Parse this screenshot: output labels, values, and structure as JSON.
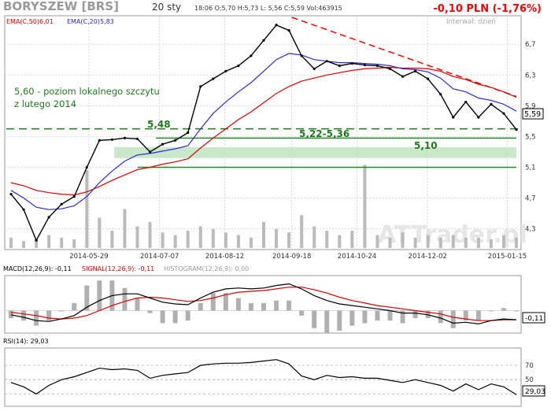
{
  "header": {
    "ticker": "BORYSZEW [BRS]",
    "date": "20 sty",
    "ohlc": "18:06  O:5,70  H:5,73  L: 5,56  C:5,59   Vol:463915",
    "change": "-0,10 PLN (-1,76%)",
    "interval": "Interwał: dzień",
    "ema50_label": "EMA(C,50)6,01",
    "ema20_label": "EMA(C,20)5,83",
    "watermark": "ATTrader.pl"
  },
  "colors": {
    "price": "#000000",
    "ema50": "#e00000",
    "ema20": "#2b2bd6",
    "volume": "#bbbbbb",
    "support": "#1e8c1e",
    "zone": "#bfe3bf",
    "resistance": "#ff0000",
    "dashed": "#1e7a1e",
    "title": "#ff0000",
    "axis": "#333333",
    "grid": "#d8d8d8"
  },
  "annotations": {
    "local_high_text_1": "5,60 - poziom lokalnego szczytu",
    "local_high_text_2": "z lutego 2014",
    "level_548": "5,48",
    "zone_label": "5,22-5,36",
    "level_510": "5,10"
  },
  "macd": {
    "label": "MACD(12,26,9): -0,11",
    "signal_label": "SIGNAL(12,26,9): -0,11",
    "histogram_label": "HISTOGRAM(12,26,9): 0,00",
    "value_box": "-0,11"
  },
  "rsi": {
    "label": "RSI(14): 29,03",
    "value_box": "29,03"
  },
  "chart_data": [
    {
      "type": "line",
      "name": "price",
      "dates": [
        "2014-04-16",
        "2014-04-23",
        "2014-04-30",
        "2014-05-07",
        "2014-05-14",
        "2014-05-21",
        "2014-05-28",
        "2014-06-04",
        "2014-06-11",
        "2014-06-18",
        "2014-06-25",
        "2014-07-02",
        "2014-07-09",
        "2014-07-16",
        "2014-07-23",
        "2014-07-30",
        "2014-08-06",
        "2014-08-13",
        "2014-08-20",
        "2014-08-27",
        "2014-09-03",
        "2014-09-10",
        "2014-09-17",
        "2014-09-24",
        "2014-10-01",
        "2014-10-08",
        "2014-10-15",
        "2014-10-22",
        "2014-10-29",
        "2014-11-05",
        "2014-11-12",
        "2014-11-19",
        "2014-11-26",
        "2014-12-03",
        "2014-12-10",
        "2014-12-17",
        "2014-12-24",
        "2014-12-31",
        "2015-01-07",
        "2015-01-14",
        "2015-01-20"
      ],
      "close": [
        4.75,
        4.55,
        4.15,
        4.45,
        4.62,
        4.72,
        5.1,
        5.45,
        5.46,
        5.48,
        5.47,
        5.3,
        5.4,
        5.45,
        5.55,
        6.15,
        6.25,
        6.35,
        6.42,
        6.55,
        6.75,
        6.95,
        6.88,
        6.55,
        6.38,
        6.48,
        6.42,
        6.45,
        6.43,
        6.42,
        6.38,
        6.28,
        6.35,
        6.25,
        6.05,
        5.75,
        5.95,
        5.75,
        5.92,
        5.8,
        5.59
      ],
      "ema20": [
        4.8,
        4.7,
        4.58,
        4.55,
        4.56,
        4.6,
        4.72,
        4.9,
        5.05,
        5.18,
        5.26,
        5.28,
        5.31,
        5.34,
        5.38,
        5.6,
        5.8,
        5.95,
        6.08,
        6.2,
        6.35,
        6.5,
        6.58,
        6.56,
        6.5,
        6.48,
        6.46,
        6.46,
        6.45,
        6.44,
        6.42,
        6.38,
        6.37,
        6.34,
        6.26,
        6.12,
        6.08,
        6.0,
        5.97,
        5.92,
        5.83
      ],
      "ema50": [
        4.9,
        4.86,
        4.8,
        4.77,
        4.75,
        4.74,
        4.78,
        4.85,
        4.93,
        5.0,
        5.07,
        5.1,
        5.14,
        5.17,
        5.21,
        5.35,
        5.48,
        5.6,
        5.72,
        5.82,
        5.94,
        6.06,
        6.15,
        6.22,
        6.26,
        6.3,
        6.33,
        6.36,
        6.38,
        6.39,
        6.4,
        6.39,
        6.39,
        6.38,
        6.35,
        6.28,
        6.24,
        6.18,
        6.14,
        6.08,
        6.01
      ],
      "volume": [
        0.12,
        0.08,
        0.1,
        0.15,
        0.12,
        0.1,
        0.9,
        0.35,
        0.2,
        0.45,
        0.25,
        0.3,
        0.18,
        0.15,
        0.2,
        0.25,
        0.22,
        0.18,
        0.15,
        0.12,
        0.3,
        0.22,
        0.18,
        0.38,
        0.25,
        0.2,
        0.15,
        0.2,
        0.96,
        0.15,
        0.12,
        0.18,
        0.12,
        0.15,
        0.12,
        0.15,
        0.12,
        0.12,
        0.1,
        0.15,
        0.12
      ],
      "x_ticks": [
        "2014-05-29",
        "2014-07-07",
        "2014-08-12",
        "2014-09-18",
        "2014-10-24",
        "2014-12-02",
        "2015-01-15"
      ],
      "y_ticks": [
        4.3,
        4.7,
        5.1,
        5.5,
        5.9,
        6.3,
        6.7
      ],
      "ylim": [
        4.05,
        7.05
      ],
      "levels": {
        "local_high": 5.6,
        "support_548": 5.48,
        "zone": [
          5.22,
          5.36
        ],
        "support_510": 5.1
      },
      "last_price_box": "5,59"
    },
    {
      "type": "line",
      "name": "macd",
      "macd": [
        -0.05,
        -0.08,
        -0.12,
        -0.13,
        -0.1,
        -0.06,
        0.04,
        0.12,
        0.18,
        0.2,
        0.2,
        0.15,
        0.1,
        0.08,
        0.07,
        0.15,
        0.22,
        0.26,
        0.27,
        0.26,
        0.27,
        0.3,
        0.32,
        0.26,
        0.18,
        0.12,
        0.08,
        0.06,
        0.04,
        0.02,
        0.0,
        -0.03,
        -0.03,
        -0.05,
        -0.09,
        -0.15,
        -0.14,
        -0.16,
        -0.12,
        -0.1,
        -0.11
      ],
      "signal": [
        -0.02,
        -0.04,
        -0.06,
        -0.09,
        -0.1,
        -0.09,
        -0.06,
        0.0,
        0.06,
        0.11,
        0.15,
        0.16,
        0.15,
        0.13,
        0.11,
        0.12,
        0.15,
        0.19,
        0.22,
        0.23,
        0.24,
        0.26,
        0.28,
        0.28,
        0.25,
        0.21,
        0.16,
        0.12,
        0.09,
        0.06,
        0.04,
        0.02,
        0.0,
        -0.02,
        -0.04,
        -0.08,
        -0.1,
        -0.12,
        -0.12,
        -0.11,
        -0.11
      ],
      "ylim": [
        -0.25,
        0.4
      ]
    },
    {
      "type": "line",
      "name": "rsi",
      "rsi": [
        46,
        40,
        30,
        42,
        50,
        54,
        60,
        66,
        64,
        65,
        63,
        52,
        56,
        58,
        60,
        70,
        72,
        73,
        73,
        74,
        76,
        78,
        72,
        55,
        50,
        56,
        53,
        54,
        52,
        52,
        49,
        46,
        50,
        46,
        42,
        34,
        44,
        36,
        44,
        40,
        29.03
      ],
      "y_ticks": [
        30,
        50,
        70
      ],
      "ylim": [
        15,
        92
      ]
    }
  ]
}
